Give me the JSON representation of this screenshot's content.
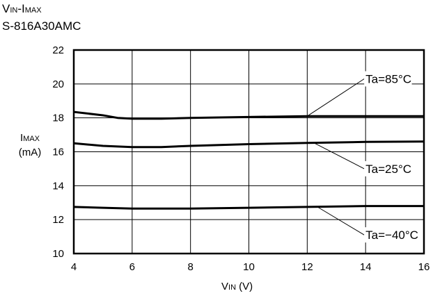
{
  "header": {
    "title_main": "V",
    "title_sub_in": "IN",
    "title_dash": "-I",
    "title_sub_max": "MAX",
    "subtitle": "S-816A30AMC"
  },
  "axes": {
    "y_main": "I",
    "y_sub": "MAX",
    "y_unit": "(mA)",
    "x_main": "V",
    "x_sub": "IN",
    "x_unit": " (V)"
  },
  "chart_data": {
    "type": "line",
    "title": "VIN-IMAX",
    "subtitle": "S-816A30AMC",
    "xlabel": "VIN (V)",
    "ylabel": "IMAX (mA)",
    "xlim": [
      4,
      16
    ],
    "ylim": [
      10,
      22
    ],
    "xticks": [
      4,
      6,
      8,
      10,
      12,
      14,
      16
    ],
    "yticks": [
      10,
      12,
      14,
      16,
      18,
      20,
      22
    ],
    "grid": true,
    "series": [
      {
        "name": "Ta=85°C",
        "x": [
          4,
          5,
          5.5,
          6,
          7,
          8,
          10,
          12,
          14,
          16
        ],
        "y": [
          18.35,
          18.15,
          18.0,
          17.95,
          17.95,
          18.0,
          18.05,
          18.1,
          18.1,
          18.1
        ]
      },
      {
        "name": "Ta=25°C",
        "x": [
          4,
          5,
          6,
          7,
          8,
          10,
          12,
          14,
          16
        ],
        "y": [
          16.5,
          16.35,
          16.28,
          16.28,
          16.35,
          16.45,
          16.52,
          16.58,
          16.6
        ]
      },
      {
        "name": "Ta=−40°C",
        "x": [
          4,
          5,
          6,
          8,
          10,
          12,
          14,
          16
        ],
        "y": [
          12.75,
          12.7,
          12.65,
          12.65,
          12.7,
          12.75,
          12.8,
          12.8
        ]
      }
    ],
    "annotations": [
      {
        "series": 0,
        "text": "Ta=85°C",
        "point": [
          12,
          18.1
        ],
        "label_at": [
          14,
          20.3
        ]
      },
      {
        "series": 1,
        "text": "Ta=25°C",
        "point": [
          12.2,
          16.55
        ],
        "label_at": [
          14,
          15
        ]
      },
      {
        "series": 2,
        "text": "Ta=−40°C",
        "point": [
          12.3,
          12.8
        ],
        "label_at": [
          14,
          11.1
        ]
      }
    ]
  }
}
